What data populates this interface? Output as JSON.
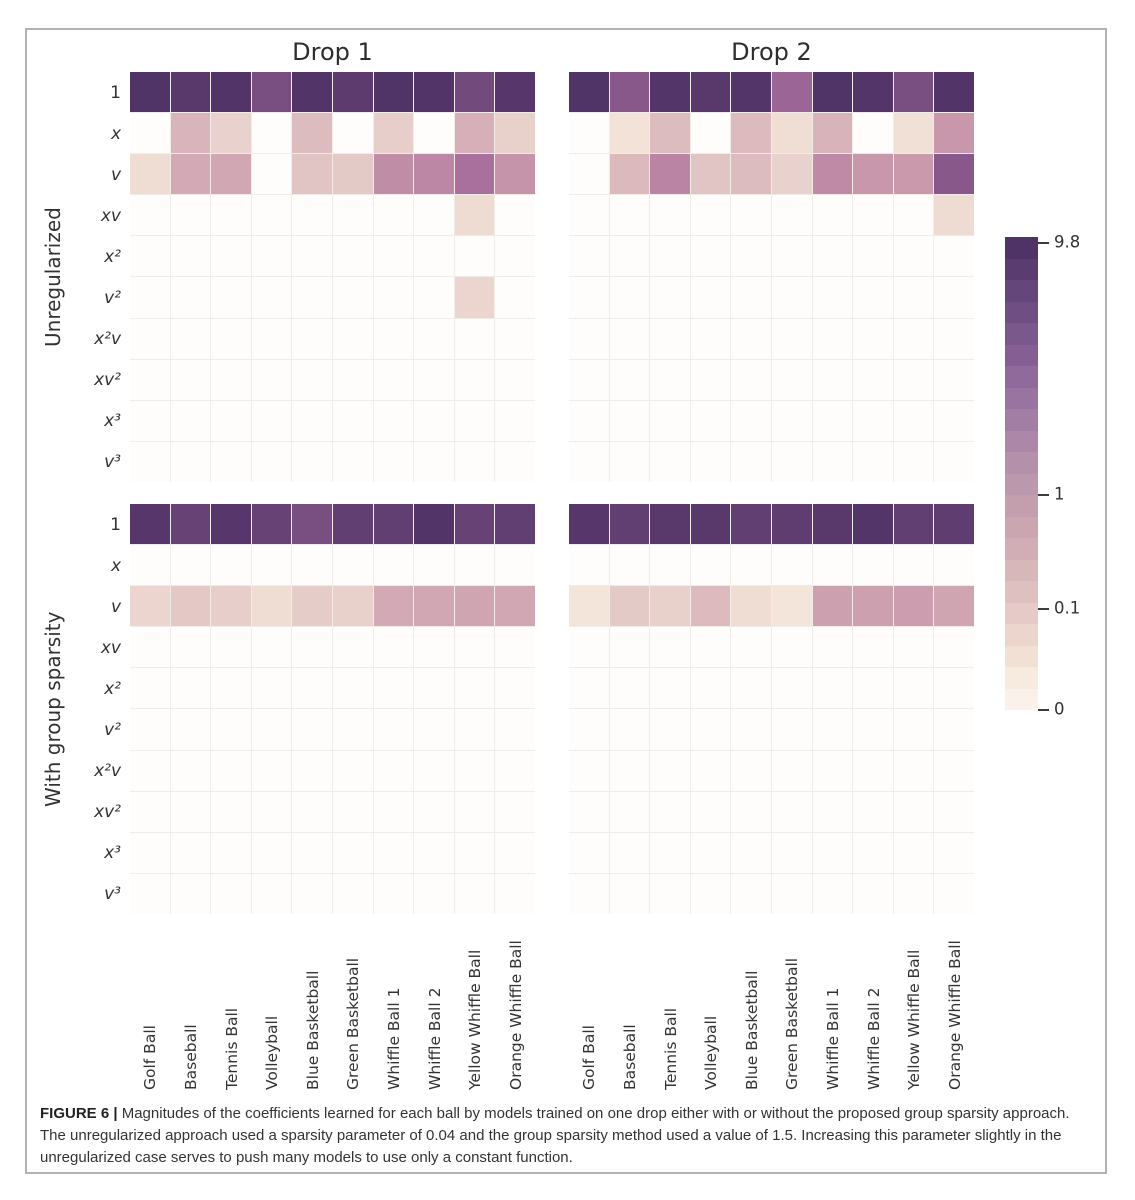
{
  "caption": {
    "label": "FIGURE 6 |",
    "text": " Magnitudes of the coefficients learned for each ball by models trained on one drop either with or without the proposed group sparsity approach. The unregularized approach used a sparsity parameter of 0.04 and the group sparsity method used a value of 1.5. Increasing this parameter slightly in the unregularized case serves to push many models to use only a constant function."
  },
  "chart_data": {
    "type": "heatmap",
    "col_group_titles": [
      "Drop 1",
      "Drop 2"
    ],
    "row_group_titles": [
      "Unregularized",
      "With group sparsity"
    ],
    "rows": [
      "1",
      "x",
      "v",
      "xv",
      "x²",
      "v²",
      "x²v",
      "xv²",
      "x³",
      "v³"
    ],
    "columns": [
      "Golf Ball",
      "Baseball",
      "Tennis Ball",
      "Volleyball",
      "Blue Basketball",
      "Green Basketball",
      "Whiffle Ball 1",
      "Whiffle Ball 2",
      "Yellow Whiffle Ball",
      "Orange Whiffle Ball"
    ],
    "panels": [
      {
        "id": "unreg_d1",
        "row_group": "Unregularized",
        "col_group": "Drop 1",
        "values": [
          [
            9.5,
            8.5,
            9.3,
            5.5,
            9.3,
            8.0,
            9.5,
            9.3,
            6.0,
            8.8
          ],
          [
            0,
            0.32,
            0.13,
            0,
            0.26,
            0,
            0.15,
            0,
            0.4,
            0.14
          ],
          [
            0.09,
            0.5,
            0.55,
            0,
            0.2,
            0.17,
            1.3,
            1.5,
            2.8,
            1.1
          ],
          [
            0,
            0,
            0,
            0,
            0,
            0,
            0,
            0,
            0.1,
            0
          ],
          [
            0,
            0,
            0,
            0,
            0,
            0,
            0,
            0,
            0,
            0
          ],
          [
            0,
            0,
            0,
            0,
            0,
            0,
            0,
            0,
            0.12,
            0
          ],
          [
            0,
            0,
            0,
            0,
            0,
            0,
            0,
            0,
            0,
            0
          ],
          [
            0,
            0,
            0,
            0,
            0,
            0,
            0,
            0,
            0,
            0
          ],
          [
            0,
            0,
            0,
            0,
            0,
            0,
            0,
            0,
            0,
            0
          ],
          [
            0,
            0,
            0,
            0,
            0,
            0,
            0,
            0,
            0,
            0
          ]
        ]
      },
      {
        "id": "unreg_d2",
        "row_group": "Unregularized",
        "col_group": "Drop 2",
        "values": [
          [
            9.5,
            4.5,
            9.0,
            8.5,
            9.0,
            3.5,
            9.5,
            9.0,
            5.5,
            9.3
          ],
          [
            0,
            0.06,
            0.26,
            0,
            0.27,
            0.08,
            0.35,
            0,
            0.07,
            1.0
          ],
          [
            0,
            0.28,
            1.6,
            0.2,
            0.26,
            0.13,
            1.4,
            1.0,
            0.9,
            4.5
          ],
          [
            0,
            0,
            0,
            0,
            0,
            0,
            0,
            0,
            0,
            0.1
          ],
          [
            0,
            0,
            0,
            0,
            0,
            0,
            0,
            0,
            0,
            0
          ],
          [
            0,
            0,
            0,
            0,
            0,
            0,
            0,
            0,
            0,
            0
          ],
          [
            0,
            0,
            0,
            0,
            0,
            0,
            0,
            0,
            0,
            0
          ],
          [
            0,
            0,
            0,
            0,
            0,
            0,
            0,
            0,
            0,
            0
          ],
          [
            0,
            0,
            0,
            0,
            0,
            0,
            0,
            0,
            0,
            0
          ],
          [
            0,
            0,
            0,
            0,
            0,
            0,
            0,
            0,
            0,
            0
          ]
        ]
      },
      {
        "id": "gs_d1",
        "row_group": "With group sparsity",
        "col_group": "Drop 1",
        "values": [
          [
            8.8,
            7.0,
            8.8,
            7.0,
            5.5,
            7.5,
            7.5,
            9.3,
            7.0,
            7.5
          ],
          [
            0,
            0,
            0,
            0,
            0,
            0,
            0,
            0,
            0,
            0
          ],
          [
            0.12,
            0.18,
            0.15,
            0.09,
            0.16,
            0.14,
            0.5,
            0.55,
            0.6,
            0.55
          ],
          [
            0,
            0,
            0,
            0,
            0,
            0,
            0,
            0,
            0,
            0
          ],
          [
            0,
            0,
            0,
            0,
            0,
            0,
            0,
            0,
            0,
            0
          ],
          [
            0,
            0,
            0,
            0,
            0,
            0,
            0,
            0,
            0,
            0
          ],
          [
            0,
            0,
            0,
            0,
            0,
            0,
            0,
            0,
            0,
            0
          ],
          [
            0,
            0,
            0,
            0,
            0,
            0,
            0,
            0,
            0,
            0
          ],
          [
            0,
            0,
            0,
            0,
            0,
            0,
            0,
            0,
            0,
            0
          ],
          [
            0,
            0,
            0,
            0,
            0,
            0,
            0,
            0,
            0,
            0
          ]
        ]
      },
      {
        "id": "gs_d2",
        "row_group": "With group sparsity",
        "col_group": "Drop 2",
        "values": [
          [
            8.8,
            7.5,
            8.5,
            8.5,
            7.5,
            7.8,
            8.5,
            9.0,
            7.5,
            7.8
          ],
          [
            0,
            0,
            0,
            0,
            0,
            0,
            0,
            0,
            0,
            0
          ],
          [
            0.05,
            0.17,
            0.14,
            0.27,
            0.09,
            0.05,
            0.7,
            0.7,
            0.8,
            0.6
          ],
          [
            0,
            0,
            0,
            0,
            0,
            0,
            0,
            0,
            0,
            0
          ],
          [
            0,
            0,
            0,
            0,
            0,
            0,
            0,
            0,
            0,
            0
          ],
          [
            0,
            0,
            0,
            0,
            0,
            0,
            0,
            0,
            0,
            0
          ],
          [
            0,
            0,
            0,
            0,
            0,
            0,
            0,
            0,
            0,
            0
          ],
          [
            0,
            0,
            0,
            0,
            0,
            0,
            0,
            0,
            0,
            0
          ],
          [
            0,
            0,
            0,
            0,
            0,
            0,
            0,
            0,
            0,
            0
          ],
          [
            0,
            0,
            0,
            0,
            0,
            0,
            0,
            0,
            0,
            0
          ]
        ]
      }
    ],
    "palette_stops": [
      [
        0.03,
        "#f7ecdf"
      ],
      [
        0.1,
        "#eedbd2"
      ],
      [
        0.3,
        "#dab7bc"
      ],
      [
        1.0,
        "#c897ab"
      ],
      [
        3.0,
        "#a76d9c"
      ],
      [
        9.8,
        "#4e3166"
      ]
    ],
    "zero_color": "#fefdfb",
    "colorbar": {
      "ticks": [
        {
          "label": "9.8",
          "pos": 0.012
        },
        {
          "label": "1",
          "pos": 0.545
        },
        {
          "label": "0.1",
          "pos": 0.787
        },
        {
          "label": "0",
          "pos": 1.0
        }
      ],
      "segments": [
        "#503366",
        "#5a3c70",
        "#64467a",
        "#6f4f83",
        "#7a588c",
        "#855f93",
        "#906a9a",
        "#9a74a0",
        "#a37ea4",
        "#ac87a7",
        "#b490aa",
        "#bc98ac",
        "#c39fae",
        "#caa6b1",
        "#d1aeb5",
        "#d8b7ba",
        "#dfc0c0",
        "#e6cac7",
        "#ecd5cd",
        "#f2e0d5",
        "#f7eadf",
        "#faf2ea"
      ]
    }
  }
}
